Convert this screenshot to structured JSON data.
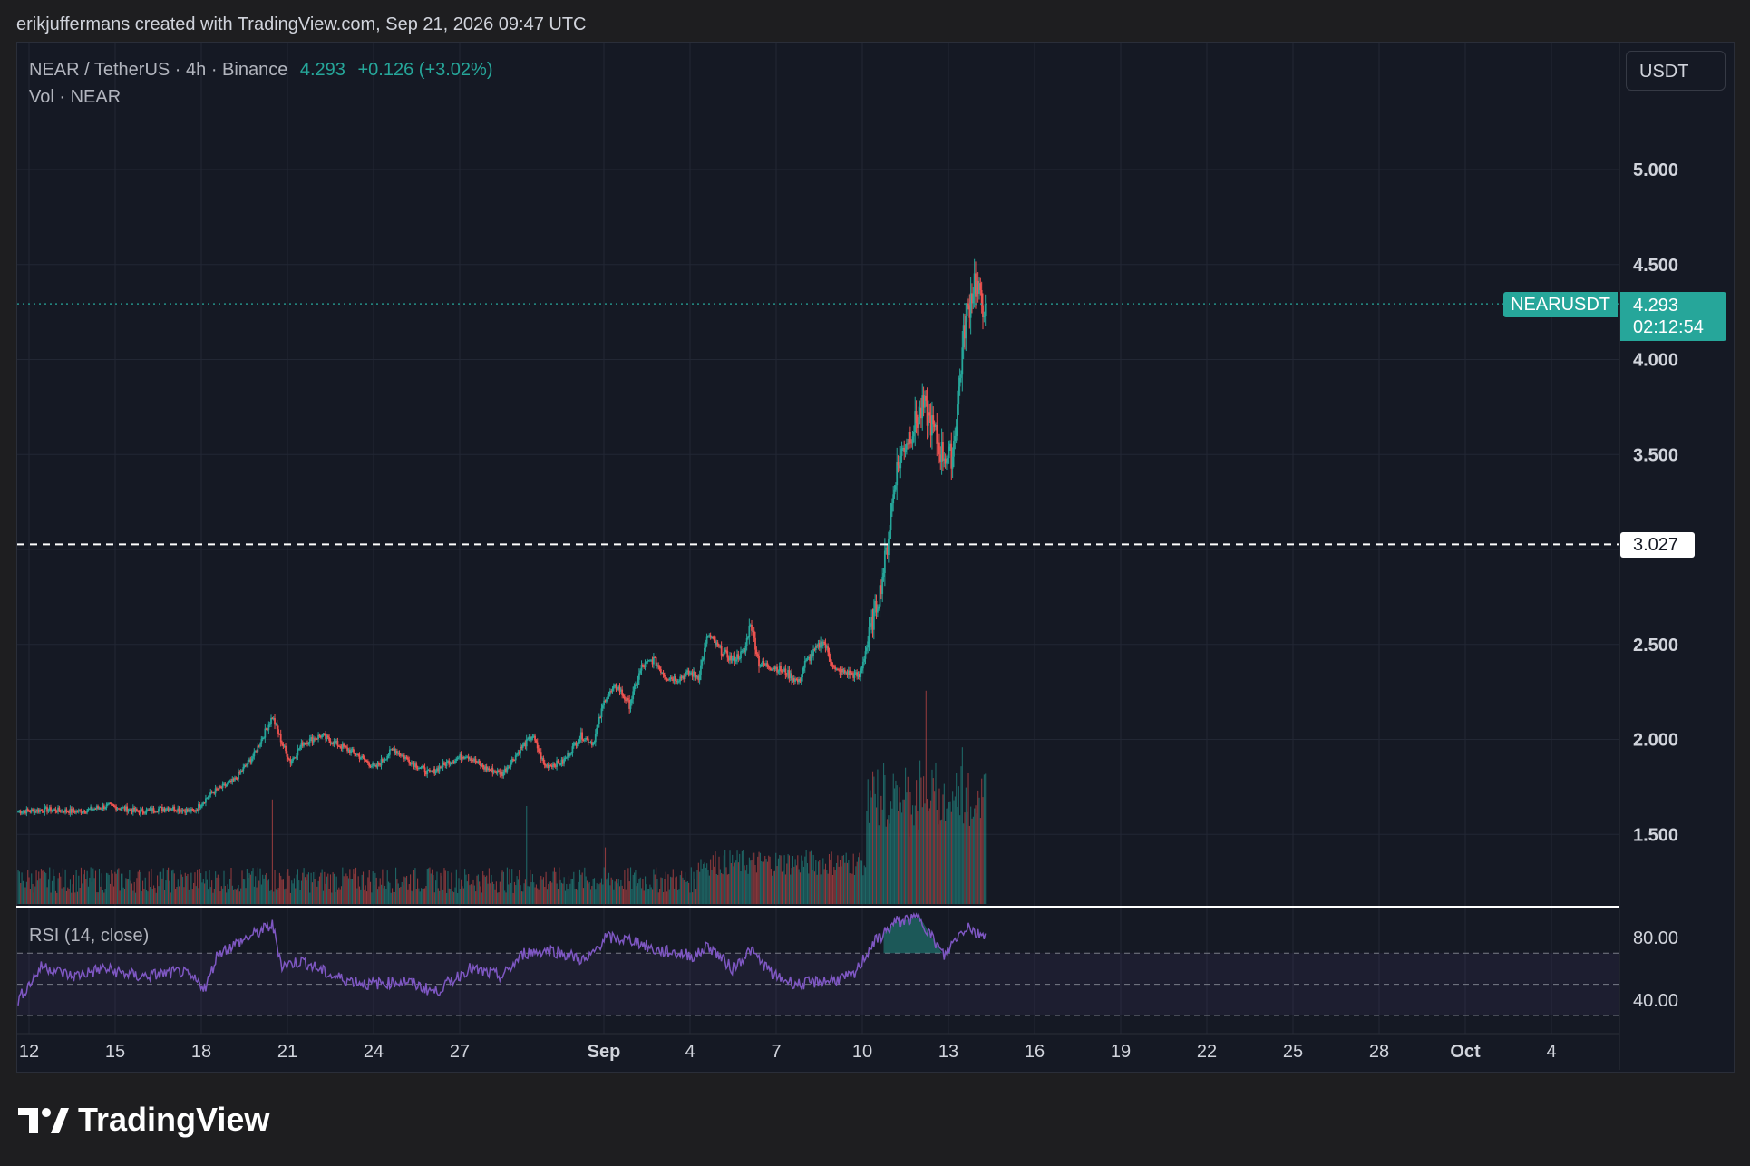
{
  "header": {
    "attribution": "erikjuffermans created with TradingView.com, Sep 21, 2026 09:47 UTC"
  },
  "symbol": {
    "name": "NEAR / TetherUS · 4h · Binance",
    "last": "4.293",
    "change": "+0.126 (+3.02%)",
    "vol_label": "Vol · NEAR",
    "ticker_tag": "NEARUSDT",
    "countdown": "02:12:54",
    "currency": "USDT"
  },
  "rsi": {
    "label": "RSI (14, close)",
    "ticks": [
      "80.00",
      "40.00"
    ]
  },
  "level": {
    "value": "3.027"
  },
  "logo": {
    "text": "TradingView"
  },
  "colors": {
    "up": "#26a69a",
    "down": "#ef5350",
    "rsi": "#7e57c2",
    "bg": "#151924"
  },
  "chart_data": {
    "type": "candlestick",
    "title": "NEAR / TetherUS · 4h · Binance",
    "y_ticks": [
      "5.000",
      "4.500",
      "4.000",
      "3.500",
      "2.500",
      "2.000",
      "1.500"
    ],
    "ylim": [
      1.1,
      5.6
    ],
    "x_ticks": [
      "12",
      "15",
      "18",
      "21",
      "24",
      "27",
      "Sep",
      "4",
      "7",
      "10",
      "13",
      "16",
      "19",
      "22",
      "25",
      "28",
      "Oct",
      "4"
    ],
    "horizontal_line": 3.027,
    "close_anchors": [
      [
        0,
        1.62
      ],
      [
        25,
        1.63
      ],
      [
        50,
        1.62
      ],
      [
        75,
        1.65
      ],
      [
        100,
        1.62
      ],
      [
        125,
        1.64
      ],
      [
        145,
        1.62
      ],
      [
        160,
        1.72
      ],
      [
        178,
        1.78
      ],
      [
        195,
        1.92
      ],
      [
        210,
        2.12
      ],
      [
        218,
        1.98
      ],
      [
        225,
        1.88
      ],
      [
        235,
        1.98
      ],
      [
        250,
        2.02
      ],
      [
        265,
        1.97
      ],
      [
        280,
        1.92
      ],
      [
        295,
        1.85
      ],
      [
        310,
        1.95
      ],
      [
        325,
        1.88
      ],
      [
        340,
        1.82
      ],
      [
        355,
        1.88
      ],
      [
        370,
        1.92
      ],
      [
        385,
        1.85
      ],
      [
        400,
        1.82
      ],
      [
        415,
        1.95
      ],
      [
        425,
        2.02
      ],
      [
        435,
        1.86
      ],
      [
        450,
        1.88
      ],
      [
        465,
        2.02
      ],
      [
        475,
        1.98
      ],
      [
        485,
        2.22
      ],
      [
        495,
        2.28
      ],
      [
        505,
        2.18
      ],
      [
        515,
        2.38
      ],
      [
        525,
        2.42
      ],
      [
        535,
        2.33
      ],
      [
        545,
        2.32
      ],
      [
        555,
        2.35
      ],
      [
        562,
        2.33
      ],
      [
        570,
        2.55
      ],
      [
        580,
        2.47
      ],
      [
        590,
        2.42
      ],
      [
        600,
        2.46
      ],
      [
        605,
        2.62
      ],
      [
        612,
        2.4
      ],
      [
        625,
        2.38
      ],
      [
        635,
        2.35
      ],
      [
        645,
        2.3
      ],
      [
        650,
        2.4
      ],
      [
        660,
        2.48
      ],
      [
        665,
        2.52
      ],
      [
        675,
        2.36
      ],
      [
        685,
        2.35
      ],
      [
        695,
        2.33
      ],
      [
        705,
        2.6
      ],
      [
        712,
        2.78
      ],
      [
        718,
        3.02
      ],
      [
        725,
        3.4
      ],
      [
        732,
        3.55
      ],
      [
        740,
        3.65
      ],
      [
        748,
        3.75
      ],
      [
        755,
        3.65
      ],
      [
        762,
        3.52
      ],
      [
        768,
        3.48
      ],
      [
        772,
        3.5
      ],
      [
        778,
        3.9
      ],
      [
        782,
        4.18
      ],
      [
        786,
        4.3
      ],
      [
        790,
        4.42
      ],
      [
        795,
        4.3
      ],
      [
        799,
        4.293
      ]
    ],
    "volume_peaks": [
      [
        210,
        0.48
      ],
      [
        420,
        0.45
      ],
      [
        485,
        0.26
      ],
      [
        745,
        0.66
      ],
      [
        750,
        0.98
      ],
      [
        757,
        0.52
      ],
      [
        775,
        0.6
      ],
      [
        780,
        0.72
      ],
      [
        785,
        0.6
      ]
    ],
    "rsi_anchors": [
      [
        0,
        40
      ],
      [
        20,
        62
      ],
      [
        45,
        55
      ],
      [
        70,
        60
      ],
      [
        100,
        55
      ],
      [
        135,
        58
      ],
      [
        155,
        48
      ],
      [
        165,
        70
      ],
      [
        190,
        80
      ],
      [
        210,
        88
      ],
      [
        218,
        62
      ],
      [
        235,
        65
      ],
      [
        260,
        55
      ],
      [
        290,
        50
      ],
      [
        320,
        52
      ],
      [
        345,
        45
      ],
      [
        372,
        60
      ],
      [
        400,
        55
      ],
      [
        418,
        70
      ],
      [
        440,
        72
      ],
      [
        470,
        65
      ],
      [
        485,
        80
      ],
      [
        510,
        78
      ],
      [
        525,
        72
      ],
      [
        545,
        70
      ],
      [
        560,
        68
      ],
      [
        570,
        75
      ],
      [
        590,
        60
      ],
      [
        605,
        72
      ],
      [
        625,
        55
      ],
      [
        645,
        50
      ],
      [
        665,
        52
      ],
      [
        690,
        55
      ],
      [
        705,
        75
      ],
      [
        725,
        90
      ],
      [
        745,
        93
      ],
      [
        755,
        80
      ],
      [
        765,
        68
      ],
      [
        775,
        80
      ],
      [
        785,
        88
      ],
      [
        792,
        82
      ],
      [
        799,
        83
      ]
    ]
  }
}
